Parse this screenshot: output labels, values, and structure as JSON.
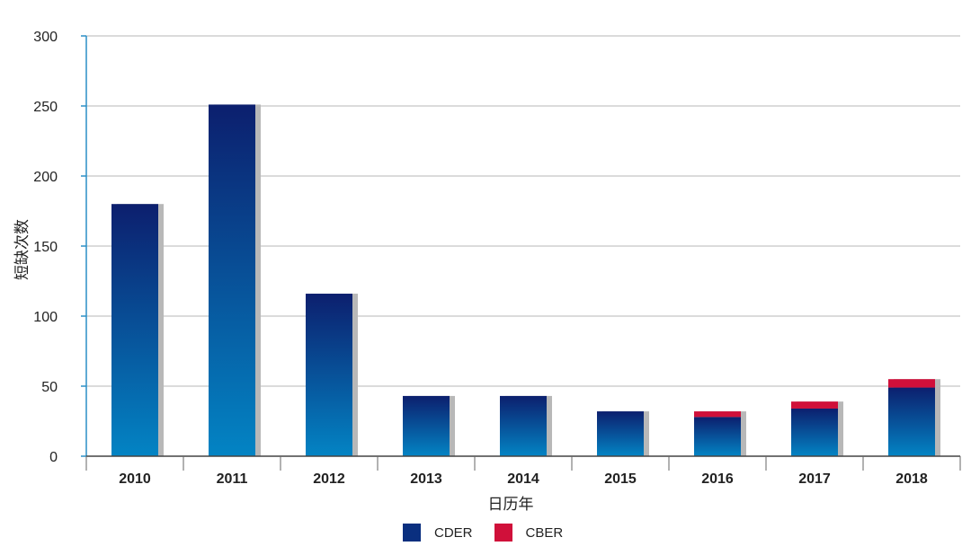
{
  "chart_data": {
    "type": "bar",
    "stacked": true,
    "title": "",
    "xlabel": "日历年",
    "ylabel": "短缺次数",
    "ylim": [
      0,
      300
    ],
    "yticks": [
      0,
      50,
      100,
      150,
      200,
      250,
      300
    ],
    "categories": [
      "2010",
      "2011",
      "2012",
      "2013",
      "2014",
      "2015",
      "2016",
      "2017",
      "2018"
    ],
    "series": [
      {
        "name": "CDER",
        "color": "#0a2f7f",
        "values": [
          180,
          251,
          116,
          43,
          43,
          32,
          28,
          34,
          49
        ]
      },
      {
        "name": "CBER",
        "color": "#d0103a",
        "values": [
          0,
          0,
          0,
          0,
          0,
          0,
          4,
          5,
          6
        ]
      }
    ],
    "grid": true,
    "legend_position": "bottom-center"
  }
}
